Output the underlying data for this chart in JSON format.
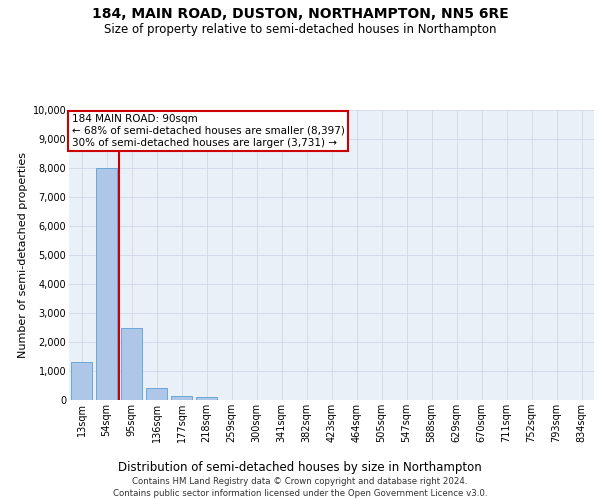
{
  "title": "184, MAIN ROAD, DUSTON, NORTHAMPTON, NN5 6RE",
  "subtitle": "Size of property relative to semi-detached houses in Northampton",
  "xlabel": "Distribution of semi-detached houses by size in Northampton",
  "ylabel": "Number of semi-detached properties",
  "bar_color": "#aec6e8",
  "bar_edge_color": "#5a9fd4",
  "categories": [
    "13sqm",
    "54sqm",
    "95sqm",
    "136sqm",
    "177sqm",
    "218sqm",
    "259sqm",
    "300sqm",
    "341sqm",
    "382sqm",
    "423sqm",
    "464sqm",
    "505sqm",
    "547sqm",
    "588sqm",
    "629sqm",
    "670sqm",
    "711sqm",
    "752sqm",
    "793sqm",
    "834sqm"
  ],
  "values": [
    1300,
    8000,
    2500,
    400,
    150,
    100,
    0,
    0,
    0,
    0,
    0,
    0,
    0,
    0,
    0,
    0,
    0,
    0,
    0,
    0,
    0
  ],
  "property_line_x": 1.5,
  "annotation_text": "184 MAIN ROAD: 90sqm\n← 68% of semi-detached houses are smaller (8,397)\n30% of semi-detached houses are larger (3,731) →",
  "annotation_box_color": "#ffffff",
  "annotation_box_edge_color": "#cc0000",
  "vline_color": "#cc0000",
  "ylim": [
    0,
    10000
  ],
  "yticks": [
    0,
    1000,
    2000,
    3000,
    4000,
    5000,
    6000,
    7000,
    8000,
    9000,
    10000
  ],
  "grid_color": "#d0d8e8",
  "background_color": "#eaf0f8",
  "footer": "Contains HM Land Registry data © Crown copyright and database right 2024.\nContains public sector information licensed under the Open Government Licence v3.0.",
  "title_fontsize": 10,
  "subtitle_fontsize": 8.5,
  "tick_fontsize": 7,
  "ylabel_fontsize": 8,
  "xlabel_fontsize": 8.5,
  "annotation_fontsize": 7.5,
  "footer_fontsize": 6.2
}
